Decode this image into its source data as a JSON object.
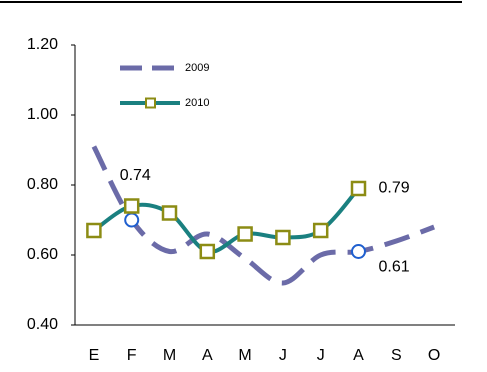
{
  "chart_data": {
    "type": "line",
    "categories": [
      "E",
      "F",
      "M",
      "A",
      "M",
      "J",
      "J",
      "A",
      "S",
      "O"
    ],
    "series": [
      {
        "name": "2009",
        "color": "#6b6ba8",
        "dashed": true,
        "marker": "circle",
        "marker_color": "#1f5fcf",
        "marker_indices": [
          1,
          7
        ],
        "values": [
          0.91,
          0.7,
          0.61,
          0.66,
          0.59,
          0.52,
          0.6,
          0.61,
          0.64,
          0.68
        ],
        "value_labels": [
          null,
          null,
          null,
          null,
          null,
          null,
          null,
          "0.61",
          null,
          null
        ]
      },
      {
        "name": "2010",
        "color": "#1a8080",
        "dashed": false,
        "marker": "square",
        "marker_color": "#8c8c14",
        "values": [
          0.67,
          0.74,
          0.72,
          0.61,
          0.66,
          0.65,
          0.67,
          0.79,
          null,
          null
        ],
        "value_labels": [
          null,
          "0.74",
          null,
          null,
          null,
          null,
          null,
          "0.79",
          null,
          null
        ]
      }
    ],
    "ylim": [
      0.4,
      1.2
    ],
    "yticks": [
      {
        "value": 0.4,
        "label": "0.40"
      },
      {
        "value": 0.6,
        "label": "0.60"
      },
      {
        "value": 0.8,
        "label": "0.80"
      },
      {
        "value": 1.0,
        "label": "1.00"
      },
      {
        "value": 1.2,
        "label": "1.20"
      }
    ],
    "grid": false,
    "smooth": true,
    "legend": "top-left"
  }
}
